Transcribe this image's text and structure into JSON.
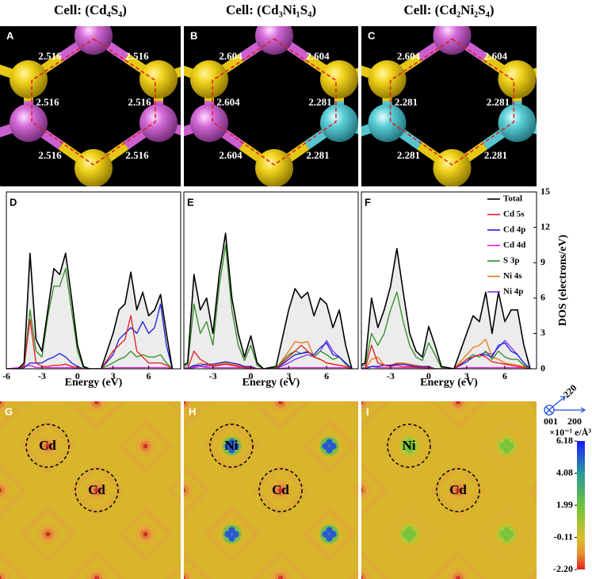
{
  "structure_panels": [
    {
      "letter": "A",
      "title": "Cell: (Cd₄S₄)",
      "bond_lengths": [
        2.516,
        2.516,
        2.516,
        2.516,
        2.516,
        2.516
      ]
    },
    {
      "letter": "B",
      "title": "Cell: (Cd₃Ni₁S₄)",
      "bond_lengths": [
        2.604,
        2.604,
        2.604,
        2.281,
        2.604,
        2.281
      ]
    },
    {
      "letter": "C",
      "title": "Cell: (Cd₂Ni₂S₄)",
      "bond_lengths": [
        2.604,
        2.604,
        2.281,
        2.281,
        2.281,
        2.281
      ]
    }
  ],
  "chart_data": [
    {
      "type": "line",
      "letter": "D",
      "x_label": "Energy (eV)",
      "x": [
        -6,
        -5,
        -4.5,
        -4,
        -3.5,
        -3,
        -2.5,
        -2,
        -1.5,
        -1,
        -0.5,
        0,
        0.5,
        1,
        2,
        3,
        3.5,
        4,
        4.5,
        5,
        5.5,
        6,
        6.5,
        7,
        7.5,
        8
      ],
      "xlim": [
        -6,
        8.7
      ],
      "xticks": [
        -6,
        -3,
        0,
        3,
        6
      ],
      "ylim": [
        0,
        15
      ],
      "series": [
        {
          "color": "#000000",
          "fill": "#ececec",
          "values": [
            0,
            0,
            0.5,
            9.8,
            2.5,
            1.5,
            5,
            8.5,
            8,
            9.8,
            6,
            2,
            0.2,
            0,
            0,
            3,
            5,
            5.5,
            8.2,
            5,
            6.5,
            4.5,
            5,
            6.3,
            3,
            0
          ]
        },
        {
          "color": "#e01b1b",
          "values": [
            0,
            0,
            0.2,
            4.2,
            0.5,
            0.2,
            0.2,
            0.3,
            0.3,
            0.4,
            0.2,
            0.1,
            0,
            0,
            0,
            1.5,
            2,
            2.5,
            4.5,
            1.5,
            1,
            0.5,
            0.5,
            0.5,
            0.3,
            0
          ]
        },
        {
          "color": "#1c1cdc",
          "values": [
            0,
            0,
            0.1,
            0.5,
            0.5,
            0.5,
            0.8,
            1,
            1.3,
            1,
            0.5,
            0.2,
            0,
            0,
            0,
            1.2,
            2.5,
            3,
            3.5,
            3,
            4,
            3,
            3.5,
            5.5,
            2,
            0
          ]
        },
        {
          "color": "#e020e0",
          "values": [
            0,
            0.1,
            0.2,
            0.3,
            0.1,
            0.1,
            0.1,
            0.1,
            0.1,
            0.1,
            0.1,
            0,
            0,
            0,
            0,
            0.1,
            0.1,
            0.1,
            0.1,
            0.1,
            0.1,
            0.1,
            0.1,
            0.1,
            0.1,
            0
          ]
        },
        {
          "color": "#2e8b22",
          "values": [
            0,
            0,
            0.3,
            5,
            1.5,
            1,
            4.5,
            7,
            7,
            8.5,
            5,
            1.5,
            0.1,
            0,
            0,
            0.5,
            0.8,
            1,
            1.5,
            1,
            1.2,
            1,
            1,
            1.2,
            0.5,
            0
          ]
        }
      ]
    },
    {
      "type": "line",
      "letter": "E",
      "x_label": "Energy (eV)",
      "x": [
        -6,
        -5,
        -4.5,
        -4,
        -3.5,
        -3,
        -2.5,
        -2,
        -1.5,
        -1,
        -0.5,
        0,
        0.5,
        1,
        2,
        3,
        3.5,
        4,
        4.5,
        5,
        5.5,
        6,
        6.5,
        7,
        7.5,
        8
      ],
      "xlim": [
        -5.3,
        8.5
      ],
      "xticks": [
        -3,
        0,
        3,
        6
      ],
      "ylim": [
        0,
        15
      ],
      "series": [
        {
          "color": "#000000",
          "fill": "#ececec",
          "values": [
            0,
            0.5,
            8,
            5,
            6,
            3,
            8,
            11.5,
            6,
            3,
            1,
            2.8,
            0.5,
            0,
            0.2,
            5,
            6.8,
            6,
            6.5,
            4.5,
            6,
            5.5,
            3.5,
            5,
            2,
            0
          ]
        },
        {
          "color": "#e01b1b",
          "values": [
            0,
            0,
            1.5,
            0.8,
            0.5,
            0.2,
            0.3,
            0.4,
            0.3,
            0.2,
            0.1,
            0.1,
            0,
            0,
            0,
            1,
            1.5,
            2,
            1.5,
            1,
            0.8,
            0.5,
            0.4,
            0.3,
            0.2,
            0
          ]
        },
        {
          "color": "#1c1cdc",
          "values": [
            0,
            0,
            0.3,
            0.3,
            0.4,
            0.4,
            0.5,
            0.6,
            0.5,
            0.4,
            0.2,
            0.2,
            0,
            0,
            0,
            0.8,
            1.2,
            1.3,
            1.4,
            1.2,
            1.8,
            2.2,
            1.2,
            1,
            0.5,
            0
          ]
        },
        {
          "color": "#e020e0",
          "values": [
            0,
            0.1,
            0.2,
            0.2,
            0.1,
            0.1,
            0.1,
            0.1,
            0.1,
            0.1,
            0.1,
            0,
            0,
            0,
            0,
            0.1,
            0.1,
            0.1,
            0.1,
            0.1,
            0.1,
            0.1,
            0.1,
            0.1,
            0.1,
            0
          ]
        },
        {
          "color": "#2e8b22",
          "values": [
            0,
            0.3,
            5.5,
            3,
            4,
            2,
            7,
            10.5,
            5,
            2,
            0.7,
            2,
            0.3,
            0,
            0.1,
            1.2,
            1.5,
            1.3,
            1.5,
            1,
            1.5,
            1.2,
            0.8,
            1,
            0.4,
            0
          ]
        },
        {
          "color": "#e8780e",
          "values": [
            0,
            0,
            0.2,
            0.5,
            0.3,
            0.3,
            0.4,
            0.5,
            0.4,
            0.3,
            0.2,
            0.1,
            0,
            0,
            0,
            1.5,
            2.3,
            2.2,
            2.3,
            1,
            0.8,
            0.5,
            0.4,
            0.3,
            0.2,
            0
          ]
        },
        {
          "color": "#7a2ef5",
          "values": [
            0,
            0,
            0.1,
            0.2,
            0.2,
            0.3,
            0.3,
            0.4,
            0.3,
            0.2,
            0.1,
            0.1,
            0,
            0,
            0,
            0.5,
            0.8,
            1,
            1.2,
            1,
            1.5,
            2.4,
            1.5,
            1,
            0.5,
            0
          ]
        }
      ]
    },
    {
      "type": "line",
      "letter": "F",
      "x_label": "Energy (eV)",
      "y_label": "DOS (electrons/eV)",
      "x": [
        -6,
        -5,
        -4.5,
        -4,
        -3.5,
        -3,
        -2.5,
        -2,
        -1.5,
        -1,
        -0.5,
        0,
        0.5,
        1,
        2,
        3,
        3.5,
        4,
        4.5,
        5,
        5.5,
        6,
        6.5,
        7,
        7.5,
        8
      ],
      "xlim": [
        -5.3,
        8.5
      ],
      "xticks": [
        -3,
        0,
        3,
        6
      ],
      "ylim": [
        0,
        15
      ],
      "yticks": [
        0,
        3,
        6,
        9,
        12,
        15
      ],
      "y_axis_side": "right",
      "legend": "upper right",
      "series": [
        {
          "name": "Total",
          "color": "#000000",
          "fill": "#ececec",
          "values": [
            0,
            0.5,
            6,
            3.5,
            5,
            7,
            10.2,
            6.5,
            3,
            1.5,
            1,
            3.6,
            2,
            0.2,
            0,
            3,
            4.5,
            4,
            6.5,
            3,
            6.5,
            4,
            5,
            5,
            2,
            0
          ]
        },
        {
          "name": "Cd 5s",
          "color": "#e01b1b",
          "values": [
            0,
            0,
            2,
            0.5,
            0.3,
            0.2,
            0.3,
            0.2,
            0.2,
            0.1,
            0.1,
            0.1,
            0,
            0,
            0,
            0.8,
            1,
            1.2,
            1,
            0.6,
            0.5,
            0.4,
            0.3,
            0.2,
            0.1,
            0
          ]
        },
        {
          "name": "Cd 4p",
          "color": "#1c1cdc",
          "values": [
            0,
            0,
            0.2,
            0.2,
            0.3,
            0.3,
            0.4,
            0.4,
            0.3,
            0.2,
            0.2,
            0.2,
            0,
            0,
            0,
            0.6,
            1,
            1.2,
            1.2,
            1,
            2,
            2.2,
            1.5,
            1.2,
            0.5,
            0
          ]
        },
        {
          "name": "Cd 4d",
          "color": "#e020e0",
          "values": [
            0,
            0.1,
            0.2,
            0.1,
            0.1,
            0.1,
            0.1,
            0.1,
            0.1,
            0.1,
            0.1,
            0,
            0,
            0,
            0,
            0.1,
            0.1,
            0.1,
            0.1,
            0.1,
            0.1,
            0.1,
            0.1,
            0.1,
            0.1,
            0
          ]
        },
        {
          "name": "S 3p",
          "color": "#2e8b22",
          "values": [
            0,
            0.3,
            3,
            2,
            3,
            5,
            6.5,
            4,
            2,
            1,
            0.7,
            2.2,
            1.2,
            0.1,
            0,
            0.8,
            1.2,
            1,
            1.5,
            0.8,
            1.5,
            1,
            0.8,
            0.8,
            0.3,
            0
          ]
        },
        {
          "name": "Ni 4s",
          "color": "#e8780e",
          "values": [
            0,
            0,
            0.8,
            1,
            0.3,
            0.3,
            0.5,
            0.5,
            0.4,
            0.3,
            0.2,
            0.1,
            0,
            0,
            0,
            1.2,
            1.8,
            2,
            2.5,
            1,
            0.8,
            0.5,
            0.4,
            0.3,
            0.2,
            0
          ]
        },
        {
          "name": "Ni 4p",
          "color": "#7a2ef5",
          "values": [
            0,
            0,
            0.2,
            0.2,
            0.3,
            0.3,
            0.4,
            0.4,
            0.3,
            0.2,
            0.1,
            0.1,
            0,
            0,
            0,
            0.6,
            1,
            1.2,
            1.4,
            1.2,
            1.8,
            2.4,
            1.8,
            1.2,
            0.5,
            0
          ]
        }
      ]
    }
  ],
  "maps": [
    {
      "letter": "G",
      "site_labels": [
        "Cd",
        "Cd"
      ]
    },
    {
      "letter": "H",
      "site_labels": [
        "Ni",
        "Cd"
      ]
    },
    {
      "letter": "I",
      "site_labels": [
        "Ni",
        "Cd"
      ]
    }
  ],
  "axes_icon": {
    "labels": [
      "220",
      "001",
      "200"
    ]
  },
  "colorbar": {
    "label": "×10⁻¹ e/Å³",
    "lim": [
      -2.2,
      6.18
    ],
    "ticks": [
      6.18,
      4.08,
      1.99,
      -0.11,
      {
        "value": -2.2,
        "label": "-2.20"
      }
    ]
  }
}
